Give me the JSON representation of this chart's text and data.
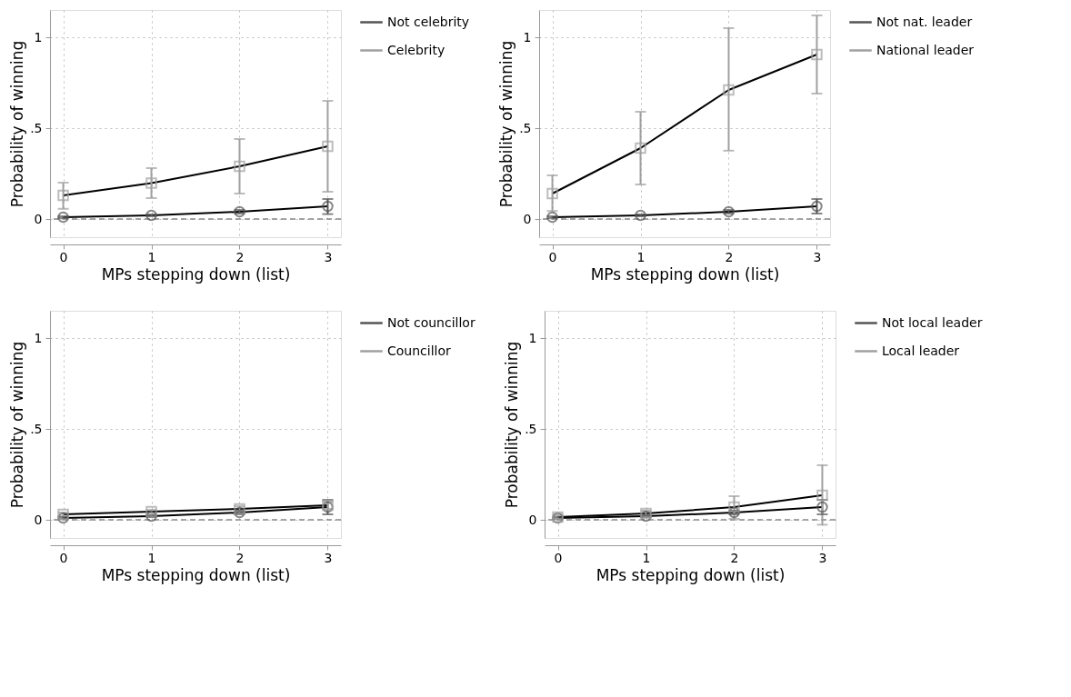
{
  "chart_data": [
    {
      "type": "line",
      "xlabel": "MPs stepping down (list)",
      "ylabel": "Probability of winning",
      "x": [
        0,
        1,
        2,
        3
      ],
      "xlim": [
        -0.15,
        3.15
      ],
      "xticks": [
        0,
        1,
        2,
        3
      ],
      "ylim": [
        -0.1,
        1.15
      ],
      "yticks": [
        {
          "value": 0,
          "label": "0"
        },
        {
          "value": 0.5,
          "label": ".5"
        },
        {
          "value": 1,
          "label": "1"
        }
      ],
      "grid": true,
      "legend": "right",
      "line_style": "solid",
      "ref_lines": [
        {
          "axis": "y",
          "value": 0,
          "color": "#888888",
          "line_style": "dashed"
        }
      ],
      "series": [
        {
          "name": "Not celebrity",
          "color": "#555555",
          "marker": "circle",
          "values": [
            0.01,
            0.02,
            0.04,
            0.07
          ],
          "errors": [
            [
              0.005,
              0.015
            ],
            [
              0.015,
              0.025
            ],
            [
              0.03,
              0.05
            ],
            [
              0.027,
              0.11
            ]
          ]
        },
        {
          "name": "Celebrity",
          "color": "#a0a0a0",
          "marker": "square",
          "values": [
            0.13,
            0.197,
            0.29,
            0.4
          ],
          "errors": [
            [
              0.056,
              0.2
            ],
            [
              0.115,
              0.28
            ],
            [
              0.14,
              0.44
            ],
            [
              0.15,
              0.65
            ]
          ]
        }
      ]
    },
    {
      "type": "line",
      "xlabel": "MPs stepping down (list)",
      "ylabel": "Probability of winning",
      "x": [
        0,
        1,
        2,
        3
      ],
      "xlim": [
        -0.15,
        3.15
      ],
      "xticks": [
        0,
        1,
        2,
        3
      ],
      "ylim": [
        -0.1,
        1.15
      ],
      "yticks": [
        {
          "value": 0,
          "label": "0"
        },
        {
          "value": 0.5,
          "label": ".5"
        },
        {
          "value": 1,
          "label": "1"
        }
      ],
      "grid": true,
      "legend": "right",
      "line_style": "solid",
      "ref_lines": [
        {
          "axis": "y",
          "value": 0,
          "color": "#888888",
          "line_style": "dashed"
        }
      ],
      "series": [
        {
          "name": "Not nat. leader",
          "color": "#555555",
          "marker": "circle",
          "values": [
            0.01,
            0.02,
            0.04,
            0.07
          ],
          "errors": [
            [
              0.005,
              0.015
            ],
            [
              0.015,
              0.025
            ],
            [
              0.03,
              0.05
            ],
            [
              0.03,
              0.11
            ]
          ]
        },
        {
          "name": "National leader",
          "color": "#a0a0a0",
          "marker": "square",
          "values": [
            0.14,
            0.39,
            0.71,
            0.905
          ],
          "errors": [
            [
              0.044,
              0.24
            ],
            [
              0.19,
              0.59
            ],
            [
              0.376,
              1.05
            ],
            [
              0.69,
              1.12
            ]
          ]
        }
      ]
    },
    {
      "type": "line",
      "xlabel": "MPs stepping down (list)",
      "ylabel": "Probability of winning",
      "x": [
        0,
        1,
        2,
        3
      ],
      "xlim": [
        -0.15,
        3.15
      ],
      "xticks": [
        0,
        1,
        2,
        3
      ],
      "ylim": [
        -0.1,
        1.15
      ],
      "yticks": [
        {
          "value": 0,
          "label": "0"
        },
        {
          "value": 0.5,
          "label": ".5"
        },
        {
          "value": 1,
          "label": "1"
        }
      ],
      "grid": true,
      "legend": "right",
      "line_style": "solid",
      "ref_lines": [
        {
          "axis": "y",
          "value": 0,
          "color": "#888888",
          "line_style": "dashed"
        }
      ],
      "series": [
        {
          "name": "Not councillor",
          "color": "#555555",
          "marker": "circle",
          "values": [
            0.01,
            0.02,
            0.04,
            0.07
          ],
          "errors": [
            [
              0.005,
              0.015
            ],
            [
              0.015,
              0.025
            ],
            [
              0.03,
              0.05
            ],
            [
              0.03,
              0.11
            ]
          ]
        },
        {
          "name": "Councillor",
          "color": "#a0a0a0",
          "marker": "square",
          "values": [
            0.03,
            0.045,
            0.06,
            0.08
          ],
          "errors": [
            [
              0.02,
              0.04
            ],
            [
              0.035,
              0.055
            ],
            [
              0.045,
              0.075
            ],
            [
              0.06,
              0.1
            ]
          ]
        }
      ]
    },
    {
      "type": "line",
      "xlabel": "MPs stepping down (list)",
      "ylabel": "Probability of winning",
      "x": [
        0,
        1,
        2,
        3
      ],
      "xlim": [
        -0.15,
        3.15
      ],
      "xticks": [
        0,
        1,
        2,
        3
      ],
      "ylim": [
        -0.1,
        1.15
      ],
      "yticks": [
        {
          "value": 0,
          "label": "0"
        },
        {
          "value": 0.5,
          "label": ".5"
        },
        {
          "value": 1,
          "label": "1"
        }
      ],
      "grid": true,
      "legend": "right",
      "line_style": "solid",
      "ref_lines": [
        {
          "axis": "y",
          "value": 0,
          "color": "#888888",
          "line_style": "dashed"
        }
      ],
      "series": [
        {
          "name": "Not local leader",
          "color": "#555555",
          "marker": "circle",
          "values": [
            0.01,
            0.02,
            0.04,
            0.07
          ],
          "errors": [
            [
              0.005,
              0.015
            ],
            [
              0.015,
              0.025
            ],
            [
              0.03,
              0.05
            ],
            [
              0.03,
              0.11
            ]
          ]
        },
        {
          "name": "Local leader",
          "color": "#a0a0a0",
          "marker": "square",
          "values": [
            0.015,
            0.035,
            0.07,
            0.135
          ],
          "errors": [
            [
              0.005,
              0.025
            ],
            [
              0.02,
              0.05
            ],
            [
              0.005,
              0.13
            ],
            [
              -0.027,
              0.3
            ]
          ]
        }
      ]
    }
  ]
}
